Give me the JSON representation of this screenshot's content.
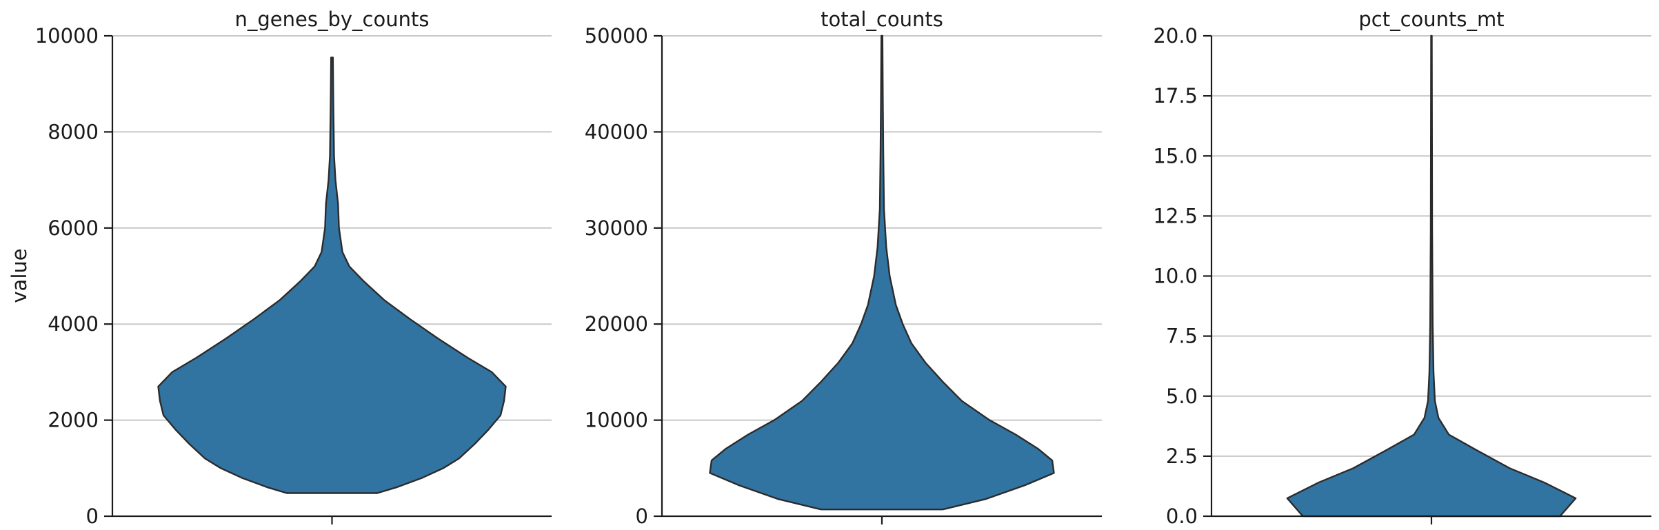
{
  "chart_data": [
    {
      "type": "violin",
      "title": "n_genes_by_counts",
      "ylabel": "value",
      "ylim": [
        0,
        10000
      ],
      "yticks": [
        0,
        2000,
        4000,
        6000,
        8000,
        10000
      ],
      "ytick_labels": [
        "0",
        "2000",
        "4000",
        "6000",
        "8000",
        "10000"
      ],
      "color": "#3274a1",
      "profile": [
        {
          "y": 480,
          "w": 0.26
        },
        {
          "y": 600,
          "w": 0.37
        },
        {
          "y": 800,
          "w": 0.52
        },
        {
          "y": 1000,
          "w": 0.64
        },
        {
          "y": 1200,
          "w": 0.73
        },
        {
          "y": 1500,
          "w": 0.82
        },
        {
          "y": 1800,
          "w": 0.9
        },
        {
          "y": 2100,
          "w": 0.97
        },
        {
          "y": 2400,
          "w": 0.99
        },
        {
          "y": 2700,
          "w": 1.0
        },
        {
          "y": 3000,
          "w": 0.92
        },
        {
          "y": 3300,
          "w": 0.78
        },
        {
          "y": 3700,
          "w": 0.61
        },
        {
          "y": 4100,
          "w": 0.45
        },
        {
          "y": 4500,
          "w": 0.3
        },
        {
          "y": 4900,
          "w": 0.18
        },
        {
          "y": 5200,
          "w": 0.1
        },
        {
          "y": 5500,
          "w": 0.06
        },
        {
          "y": 6000,
          "w": 0.04
        },
        {
          "y": 6500,
          "w": 0.035
        },
        {
          "y": 7000,
          "w": 0.02
        },
        {
          "y": 7500,
          "w": 0.012
        },
        {
          "y": 8500,
          "w": 0.008
        },
        {
          "y": 9550,
          "w": 0.005
        }
      ]
    },
    {
      "type": "violin",
      "title": "total_counts",
      "ylabel": "",
      "ylim": [
        0,
        50000
      ],
      "yticks": [
        0,
        10000,
        20000,
        30000,
        40000,
        50000
      ],
      "ytick_labels": [
        "0",
        "10000",
        "20000",
        "30000",
        "40000",
        "50000"
      ],
      "color": "#3274a1",
      "profile": [
        {
          "y": 700,
          "w": 0.35
        },
        {
          "y": 1800,
          "w": 0.6
        },
        {
          "y": 3200,
          "w": 0.82
        },
        {
          "y": 4500,
          "w": 0.99
        },
        {
          "y": 5800,
          "w": 0.98
        },
        {
          "y": 7000,
          "w": 0.9
        },
        {
          "y": 8500,
          "w": 0.77
        },
        {
          "y": 10000,
          "w": 0.62
        },
        {
          "y": 12000,
          "w": 0.46
        },
        {
          "y": 14000,
          "w": 0.35
        },
        {
          "y": 16000,
          "w": 0.25
        },
        {
          "y": 18000,
          "w": 0.17
        },
        {
          "y": 20000,
          "w": 0.12
        },
        {
          "y": 22000,
          "w": 0.08
        },
        {
          "y": 25000,
          "w": 0.045
        },
        {
          "y": 28000,
          "w": 0.025
        },
        {
          "y": 32000,
          "w": 0.012
        },
        {
          "y": 38000,
          "w": 0.008
        },
        {
          "y": 44000,
          "w": 0.005
        },
        {
          "y": 50000,
          "w": 0.003
        }
      ]
    },
    {
      "type": "violin",
      "title": "pct_counts_mt",
      "ylabel": "",
      "ylim": [
        0,
        20
      ],
      "yticks": [
        0,
        2.5,
        5,
        7.5,
        10,
        12.5,
        15,
        17.5,
        20
      ],
      "ytick_labels": [
        "0.0",
        "2.5",
        "5.0",
        "7.5",
        "10.0",
        "12.5",
        "15.0",
        "17.5",
        "20.0"
      ],
      "color": "#3274a1",
      "profile": [
        {
          "y": 0.0,
          "w": 0.74
        },
        {
          "y": 0.75,
          "w": 0.83
        },
        {
          "y": 1.4,
          "w": 0.65
        },
        {
          "y": 2.0,
          "w": 0.45
        },
        {
          "y": 2.75,
          "w": 0.26
        },
        {
          "y": 3.4,
          "w": 0.1
        },
        {
          "y": 4.1,
          "w": 0.04
        },
        {
          "y": 4.8,
          "w": 0.02
        },
        {
          "y": 6.0,
          "w": 0.012
        },
        {
          "y": 8.0,
          "w": 0.007
        },
        {
          "y": 12.0,
          "w": 0.004
        },
        {
          "y": 20.0,
          "w": 0.002
        }
      ]
    }
  ]
}
